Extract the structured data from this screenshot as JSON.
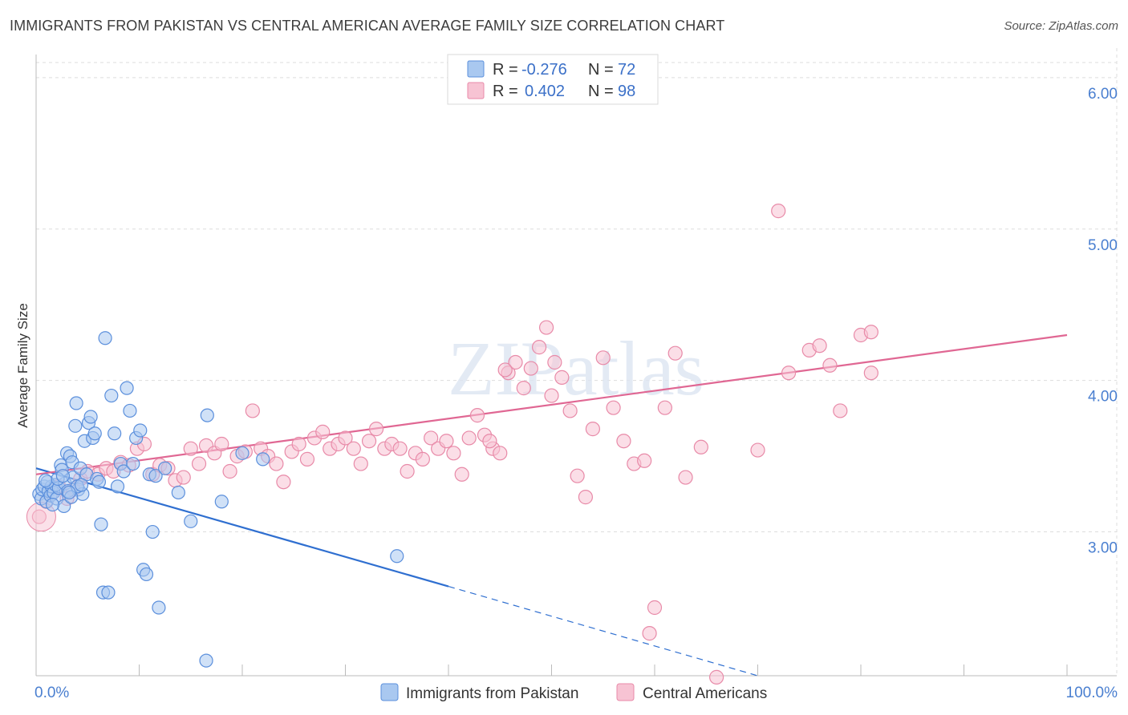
{
  "title": "IMMIGRANTS FROM PAKISTAN VS CENTRAL AMERICAN AVERAGE FAMILY SIZE CORRELATION CHART",
  "source": "Source: ZipAtlas.com",
  "watermark": "ZIPatlas",
  "colors": {
    "blue_fill": "#a9c8f0",
    "blue_stroke": "#5b8fdc",
    "blue_line": "#2f6fd0",
    "pink_fill": "#f7c3d3",
    "pink_stroke": "#e88aa8",
    "pink_line": "#e06793",
    "axis_text": "#4a7fd0",
    "grid": "#dddddd"
  },
  "legend_top": {
    "row1": {
      "r_label": "R =",
      "r_value": "-0.276",
      "n_label": "N =",
      "n_value": "72"
    },
    "row2": {
      "r_label": "R =",
      "r_value": "0.402",
      "n_label": "N =",
      "n_value": "98"
    }
  },
  "chart_data": {
    "type": "scatter",
    "ylabel": "Average Family Size",
    "xlim": [
      0,
      100
    ],
    "ylim": [
      2.05,
      6.1
    ],
    "x_tick_labels": [
      "0.0%",
      "100.0%"
    ],
    "y_ticks": [
      3.0,
      4.0,
      5.0,
      6.0
    ],
    "y_tick_labels": [
      "3.00",
      "4.00",
      "5.00",
      "6.00"
    ],
    "grid": true,
    "legend_position": "top-center",
    "series": [
      {
        "name": "Immigrants from Pakistan",
        "color": "#a9c8f0",
        "trend": {
          "x": [
            0,
            40
          ],
          "y": [
            3.42,
            2.64
          ],
          "dashed_to": [
            70,
            2.05
          ]
        },
        "points": [
          [
            0.3,
            3.25
          ],
          [
            0.5,
            3.22
          ],
          [
            0.6,
            3.28
          ],
          [
            0.8,
            3.3
          ],
          [
            1.0,
            3.2
          ],
          [
            1.2,
            3.27
          ],
          [
            1.4,
            3.24
          ],
          [
            1.5,
            3.3
          ],
          [
            1.7,
            3.26
          ],
          [
            1.9,
            3.31
          ],
          [
            2.0,
            3.22
          ],
          [
            2.2,
            3.29
          ],
          [
            2.4,
            3.44
          ],
          [
            2.5,
            3.41
          ],
          [
            2.7,
            3.17
          ],
          [
            2.8,
            3.32
          ],
          [
            3.0,
            3.52
          ],
          [
            3.1,
            3.27
          ],
          [
            3.3,
            3.5
          ],
          [
            3.5,
            3.46
          ],
          [
            3.6,
            3.36
          ],
          [
            3.8,
            3.7
          ],
          [
            3.9,
            3.85
          ],
          [
            4.1,
            3.28
          ],
          [
            4.3,
            3.42
          ],
          [
            4.5,
            3.25
          ],
          [
            4.7,
            3.6
          ],
          [
            4.9,
            3.38
          ],
          [
            5.1,
            3.72
          ],
          [
            5.3,
            3.76
          ],
          [
            5.5,
            3.62
          ],
          [
            5.7,
            3.65
          ],
          [
            5.9,
            3.35
          ],
          [
            6.1,
            3.33
          ],
          [
            6.3,
            3.05
          ],
          [
            6.5,
            2.6
          ],
          [
            6.7,
            4.28
          ],
          [
            7.0,
            2.6
          ],
          [
            7.3,
            3.9
          ],
          [
            7.6,
            3.65
          ],
          [
            7.9,
            3.3
          ],
          [
            8.2,
            3.45
          ],
          [
            8.5,
            3.4
          ],
          [
            8.8,
            3.95
          ],
          [
            9.1,
            3.8
          ],
          [
            9.4,
            3.45
          ],
          [
            9.7,
            3.62
          ],
          [
            10.1,
            3.67
          ],
          [
            10.4,
            2.75
          ],
          [
            10.7,
            2.72
          ],
          [
            11.0,
            3.38
          ],
          [
            11.3,
            3.0
          ],
          [
            11.6,
            3.37
          ],
          [
            11.9,
            2.5
          ],
          [
            12.5,
            3.42
          ],
          [
            13.8,
            3.26
          ],
          [
            15.0,
            3.07
          ],
          [
            16.6,
            3.77
          ],
          [
            18.0,
            3.2
          ],
          [
            16.5,
            2.15
          ],
          [
            20.0,
            3.52
          ],
          [
            22.0,
            3.48
          ],
          [
            35.0,
            2.84
          ],
          [
            1.1,
            3.33
          ],
          [
            2.1,
            3.35
          ],
          [
            3.4,
            3.23
          ],
          [
            4.0,
            3.3
          ],
          [
            0.9,
            3.34
          ],
          [
            1.6,
            3.18
          ],
          [
            2.6,
            3.37
          ],
          [
            3.2,
            3.26
          ],
          [
            4.4,
            3.31
          ]
        ]
      },
      {
        "name": "Central Americans",
        "color": "#f7c3d3",
        "trend": {
          "x": [
            0,
            100
          ],
          "y": [
            3.38,
            4.3
          ]
        },
        "points": [
          [
            0.3,
            3.1
          ],
          [
            1.0,
            3.2
          ],
          [
            1.5,
            3.25
          ],
          [
            2.2,
            3.3
          ],
          [
            3.0,
            3.22
          ],
          [
            3.6,
            3.28
          ],
          [
            4.3,
            3.35
          ],
          [
            5.0,
            3.4
          ],
          [
            6.0,
            3.38
          ],
          [
            6.8,
            3.42
          ],
          [
            7.5,
            3.4
          ],
          [
            8.2,
            3.46
          ],
          [
            9.0,
            3.44
          ],
          [
            9.8,
            3.55
          ],
          [
            10.5,
            3.58
          ],
          [
            11.3,
            3.38
          ],
          [
            12.0,
            3.44
          ],
          [
            12.8,
            3.42
          ],
          [
            13.5,
            3.34
          ],
          [
            14.3,
            3.36
          ],
          [
            15.0,
            3.55
          ],
          [
            15.8,
            3.45
          ],
          [
            16.5,
            3.57
          ],
          [
            17.3,
            3.52
          ],
          [
            18.0,
            3.58
          ],
          [
            18.8,
            3.4
          ],
          [
            19.5,
            3.5
          ],
          [
            20.3,
            3.53
          ],
          [
            21.0,
            3.8
          ],
          [
            21.8,
            3.55
          ],
          [
            22.5,
            3.5
          ],
          [
            23.3,
            3.45
          ],
          [
            24.0,
            3.33
          ],
          [
            24.8,
            3.53
          ],
          [
            25.5,
            3.58
          ],
          [
            26.3,
            3.48
          ],
          [
            27.0,
            3.62
          ],
          [
            27.8,
            3.66
          ],
          [
            28.5,
            3.55
          ],
          [
            29.3,
            3.58
          ],
          [
            30.0,
            3.62
          ],
          [
            30.8,
            3.55
          ],
          [
            31.5,
            3.45
          ],
          [
            32.3,
            3.6
          ],
          [
            33.0,
            3.68
          ],
          [
            33.8,
            3.55
          ],
          [
            34.5,
            3.58
          ],
          [
            35.3,
            3.55
          ],
          [
            36.0,
            3.4
          ],
          [
            36.8,
            3.52
          ],
          [
            37.5,
            3.48
          ],
          [
            38.3,
            3.62
          ],
          [
            39.0,
            3.55
          ],
          [
            39.8,
            3.6
          ],
          [
            40.5,
            3.52
          ],
          [
            41.3,
            3.38
          ],
          [
            42.0,
            3.62
          ],
          [
            42.8,
            3.77
          ],
          [
            43.5,
            3.64
          ],
          [
            44.3,
            3.55
          ],
          [
            45.0,
            3.52
          ],
          [
            45.8,
            4.05
          ],
          [
            46.5,
            4.12
          ],
          [
            47.3,
            3.95
          ],
          [
            48.0,
            4.08
          ],
          [
            48.8,
            4.22
          ],
          [
            49.5,
            4.35
          ],
          [
            50.3,
            4.12
          ],
          [
            51.0,
            4.02
          ],
          [
            51.8,
            3.8
          ],
          [
            52.5,
            3.37
          ],
          [
            53.3,
            3.23
          ],
          [
            54.0,
            3.68
          ],
          [
            55.0,
            4.15
          ],
          [
            56.0,
            3.82
          ],
          [
            57.0,
            3.6
          ],
          [
            58.0,
            3.45
          ],
          [
            59.0,
            3.47
          ],
          [
            60.0,
            2.5
          ],
          [
            59.5,
            2.33
          ],
          [
            61.0,
            3.82
          ],
          [
            62.0,
            4.18
          ],
          [
            63.0,
            3.36
          ],
          [
            64.5,
            3.56
          ],
          [
            66.0,
            2.04
          ],
          [
            70.0,
            3.54
          ],
          [
            72.0,
            5.12
          ],
          [
            73.0,
            4.05
          ],
          [
            75.0,
            4.2
          ],
          [
            76.0,
            4.23
          ],
          [
            77.0,
            4.1
          ],
          [
            78.0,
            3.8
          ],
          [
            80.0,
            4.3
          ],
          [
            81.0,
            4.05
          ],
          [
            45.5,
            4.07
          ],
          [
            44.0,
            3.6
          ],
          [
            50.0,
            3.9
          ],
          [
            81.0,
            4.32
          ]
        ]
      }
    ]
  },
  "bottom_legend": {
    "item1": "Immigrants from Pakistan",
    "item2": "Central Americans"
  }
}
